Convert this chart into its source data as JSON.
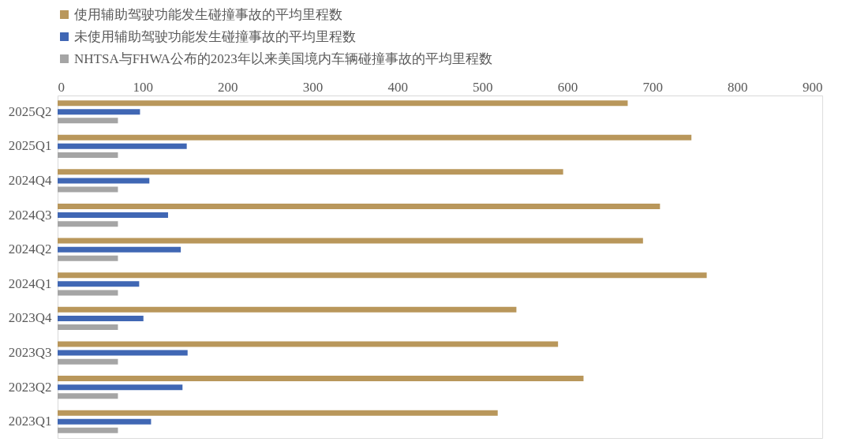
{
  "chart_data": {
    "type": "bar",
    "orientation": "horizontal",
    "categories": [
      "2025Q2",
      "2025Q1",
      "2024Q4",
      "2024Q3",
      "2024Q2",
      "2024Q1",
      "2023Q4",
      "2023Q3",
      "2023Q2",
      "2023Q1"
    ],
    "series": [
      {
        "name": "使用辅助驾驶功能发生碰撞事故的平均里程数",
        "color": "#b9975b",
        "values": [
          671,
          746,
          595,
          709,
          689,
          764,
          540,
          589,
          619,
          518
        ]
      },
      {
        "name": "未使用辅助驾驶功能发生碰撞事故的平均里程数",
        "color": "#4067b4",
        "values": [
          97,
          152,
          108,
          130,
          145,
          96,
          101,
          153,
          147,
          110
        ]
      },
      {
        "name": "NHTSA与FHWA公布的2023年以来美国境内车辆碰撞事故的平均里程数",
        "color": "#a5a5a5",
        "values": [
          71,
          71,
          71,
          71,
          71,
          71,
          71,
          71,
          71,
          71
        ]
      }
    ],
    "xlim": [
      0,
      900
    ],
    "xticks": [
      0,
      100,
      200,
      300,
      400,
      500,
      600,
      700,
      800,
      900
    ],
    "grid": false,
    "legend": "top"
  }
}
